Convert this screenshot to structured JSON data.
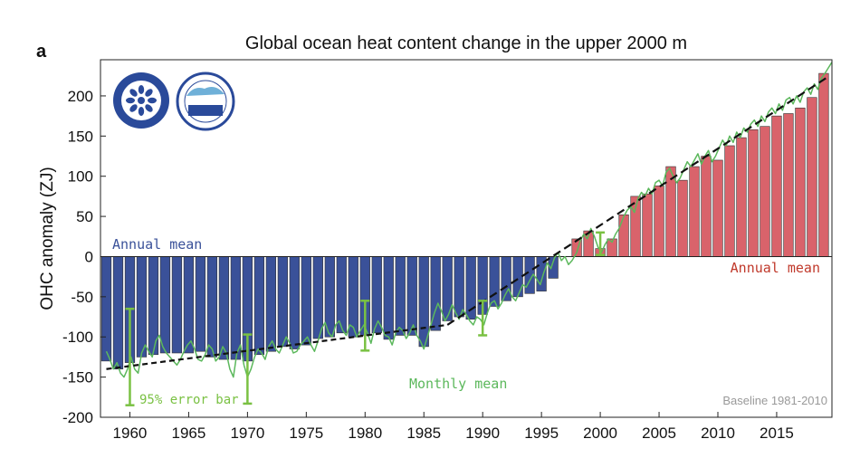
{
  "panel_label": "a",
  "chart_data": {
    "type": "bar",
    "title": "Global ocean heat content change in the upper 2000 m",
    "xlabel": "",
    "ylabel": "OHC anomaly (ZJ)",
    "xlim": [
      1957.5,
      2019.7
    ],
    "ylim": [
      -200,
      245
    ],
    "x_ticks": [
      1960,
      1965,
      1970,
      1975,
      1980,
      1985,
      1990,
      1995,
      2000,
      2005,
      2010,
      2015
    ],
    "y_ticks": [
      -200,
      -150,
      -100,
      -50,
      0,
      50,
      100,
      150,
      200
    ],
    "grid": false,
    "negative_color": "#3a5199",
    "positive_color": "#d9636b",
    "monthly_color": "#5cb85c",
    "errorbar_color": "#7ac143",
    "trend_color": "#111111",
    "annual_years": [
      1958,
      1959,
      1960,
      1961,
      1962,
      1963,
      1964,
      1965,
      1966,
      1967,
      1968,
      1969,
      1970,
      1971,
      1972,
      1973,
      1974,
      1975,
      1976,
      1977,
      1978,
      1979,
      1980,
      1981,
      1982,
      1983,
      1984,
      1985,
      1986,
      1987,
      1988,
      1989,
      1990,
      1991,
      1992,
      1993,
      1994,
      1995,
      1996,
      1997,
      1998,
      1999,
      2000,
      2001,
      2002,
      2003,
      2004,
      2005,
      2006,
      2007,
      2008,
      2009,
      2010,
      2011,
      2012,
      2013,
      2014,
      2015,
      2016,
      2017,
      2018,
      2019
    ],
    "annual_values": [
      -130,
      -140,
      -132,
      -125,
      -122,
      -120,
      -120,
      -120,
      -118,
      -125,
      -128,
      -128,
      -130,
      -122,
      -118,
      -112,
      -115,
      -110,
      -102,
      -100,
      -95,
      -100,
      -98,
      -95,
      -103,
      -98,
      -98,
      -112,
      -92,
      -80,
      -75,
      -78,
      -72,
      -62,
      -55,
      -50,
      -46,
      -43,
      -27,
      0,
      22,
      32,
      10,
      22,
      52,
      75,
      78,
      88,
      112,
      95,
      112,
      125,
      120,
      138,
      148,
      158,
      162,
      175,
      178,
      185,
      198,
      228
    ],
    "monthly_points": [
      [
        1958.0,
        -118
      ],
      [
        1958.3,
        -128
      ],
      [
        1958.6,
        -140
      ],
      [
        1958.9,
        -132
      ],
      [
        1959.2,
        -145
      ],
      [
        1959.5,
        -150
      ],
      [
        1959.8,
        -140
      ],
      [
        1960.1,
        -125
      ],
      [
        1960.4,
        -140
      ],
      [
        1960.7,
        -145
      ],
      [
        1961.0,
        -120
      ],
      [
        1961.3,
        -110
      ],
      [
        1961.6,
        -118
      ],
      [
        1961.9,
        -125
      ],
      [
        1962.2,
        -105
      ],
      [
        1962.5,
        -98
      ],
      [
        1962.8,
        -112
      ],
      [
        1963.1,
        -120
      ],
      [
        1963.4,
        -125
      ],
      [
        1963.7,
        -130
      ],
      [
        1964.0,
        -135
      ],
      [
        1964.3,
        -128
      ],
      [
        1964.6,
        -118
      ],
      [
        1964.9,
        -110
      ],
      [
        1965.2,
        -105
      ],
      [
        1965.5,
        -115
      ],
      [
        1965.8,
        -128
      ],
      [
        1966.1,
        -130
      ],
      [
        1966.4,
        -122
      ],
      [
        1966.7,
        -110
      ],
      [
        1967.0,
        -115
      ],
      [
        1967.3,
        -130
      ],
      [
        1967.6,
        -125
      ],
      [
        1967.9,
        -112
      ],
      [
        1968.2,
        -120
      ],
      [
        1968.5,
        -140
      ],
      [
        1968.8,
        -150
      ],
      [
        1969.1,
        -120
      ],
      [
        1969.4,
        -110
      ],
      [
        1969.7,
        -135
      ],
      [
        1970.0,
        -150
      ],
      [
        1970.3,
        -140
      ],
      [
        1970.6,
        -125
      ],
      [
        1970.9,
        -115
      ],
      [
        1971.2,
        -120
      ],
      [
        1971.5,
        -128
      ],
      [
        1971.8,
        -112
      ],
      [
        1972.1,
        -105
      ],
      [
        1972.4,
        -115
      ],
      [
        1972.7,
        -120
      ],
      [
        1973.0,
        -110
      ],
      [
        1973.3,
        -100
      ],
      [
        1973.6,
        -108
      ],
      [
        1973.9,
        -120
      ],
      [
        1974.2,
        -118
      ],
      [
        1974.5,
        -110
      ],
      [
        1974.8,
        -105
      ],
      [
        1975.1,
        -100
      ],
      [
        1975.4,
        -110
      ],
      [
        1975.7,
        -118
      ],
      [
        1976.0,
        -105
      ],
      [
        1976.3,
        -90
      ],
      [
        1976.6,
        -82
      ],
      [
        1976.9,
        -95
      ],
      [
        1977.2,
        -100
      ],
      [
        1977.5,
        -85
      ],
      [
        1977.8,
        -80
      ],
      [
        1978.1,
        -92
      ],
      [
        1978.4,
        -98
      ],
      [
        1978.7,
        -85
      ],
      [
        1979.0,
        -88
      ],
      [
        1979.3,
        -100
      ],
      [
        1979.6,
        -92
      ],
      [
        1979.9,
        -85
      ],
      [
        1980.2,
        -95
      ],
      [
        1980.5,
        -108
      ],
      [
        1980.8,
        -90
      ],
      [
        1981.1,
        -80
      ],
      [
        1981.4,
        -88
      ],
      [
        1981.7,
        -98
      ],
      [
        1982.0,
        -100
      ],
      [
        1982.3,
        -110
      ],
      [
        1982.6,
        -95
      ],
      [
        1982.9,
        -88
      ],
      [
        1983.2,
        -92
      ],
      [
        1983.5,
        -102
      ],
      [
        1983.8,
        -95
      ],
      [
        1984.1,
        -85
      ],
      [
        1984.4,
        -98
      ],
      [
        1984.7,
        -105
      ],
      [
        1985.0,
        -115
      ],
      [
        1985.3,
        -100
      ],
      [
        1985.6,
        -85
      ],
      [
        1985.9,
        -70
      ],
      [
        1986.2,
        -58
      ],
      [
        1986.5,
        -68
      ],
      [
        1986.8,
        -80
      ],
      [
        1987.1,
        -72
      ],
      [
        1987.4,
        -60
      ],
      [
        1987.7,
        -70
      ],
      [
        1988.0,
        -78
      ],
      [
        1988.3,
        -66
      ],
      [
        1988.6,
        -72
      ],
      [
        1988.9,
        -80
      ],
      [
        1989.2,
        -85
      ],
      [
        1989.5,
        -75
      ],
      [
        1989.8,
        -78
      ],
      [
        1990.1,
        -85
      ],
      [
        1990.4,
        -70
      ],
      [
        1990.7,
        -58
      ],
      [
        1991.0,
        -55
      ],
      [
        1991.3,
        -65
      ],
      [
        1991.6,
        -58
      ],
      [
        1991.9,
        -48
      ],
      [
        1992.2,
        -40
      ],
      [
        1992.5,
        -50
      ],
      [
        1992.8,
        -55
      ],
      [
        1993.1,
        -45
      ],
      [
        1993.4,
        -35
      ],
      [
        1993.7,
        -38
      ],
      [
        1994.0,
        -30
      ],
      [
        1994.3,
        -22
      ],
      [
        1994.6,
        -28
      ],
      [
        1994.9,
        -35
      ],
      [
        1995.2,
        -20
      ],
      [
        1995.5,
        -8
      ],
      [
        1995.8,
        -15
      ],
      [
        1996.1,
        -2
      ],
      [
        1996.4,
        5
      ],
      [
        1996.7,
        -5
      ],
      [
        1997.0,
        0
      ],
      [
        1997.3,
        -10
      ],
      [
        1997.6,
        -5
      ],
      [
        1998.0,
        5
      ],
      [
        1998.3,
        20
      ],
      [
        1998.6,
        28
      ],
      [
        1998.9,
        22
      ],
      [
        1999.2,
        35
      ],
      [
        1999.5,
        25
      ],
      [
        1999.8,
        12
      ],
      [
        2000.1,
        5
      ],
      [
        2000.4,
        15
      ],
      [
        2000.7,
        22
      ],
      [
        2001.0,
        18
      ],
      [
        2001.3,
        28
      ],
      [
        2001.6,
        35
      ],
      [
        2002.0,
        50
      ],
      [
        2002.3,
        58
      ],
      [
        2002.6,
        62
      ],
      [
        2002.9,
        55
      ],
      [
        2003.2,
        72
      ],
      [
        2003.5,
        80
      ],
      [
        2003.8,
        75
      ],
      [
        2004.1,
        85
      ],
      [
        2004.4,
        78
      ],
      [
        2004.7,
        92
      ],
      [
        2005.0,
        95
      ],
      [
        2005.3,
        88
      ],
      [
        2005.6,
        105
      ],
      [
        2005.9,
        110
      ],
      [
        2006.2,
        100
      ],
      [
        2006.5,
        92
      ],
      [
        2006.8,
        98
      ],
      [
        2007.1,
        108
      ],
      [
        2007.4,
        118
      ],
      [
        2007.7,
        112
      ],
      [
        2008.0,
        120
      ],
      [
        2008.3,
        128
      ],
      [
        2008.6,
        115
      ],
      [
        2008.9,
        125
      ],
      [
        2009.2,
        132
      ],
      [
        2009.5,
        118
      ],
      [
        2009.8,
        125
      ],
      [
        2010.1,
        135
      ],
      [
        2010.4,
        145
      ],
      [
        2010.7,
        138
      ],
      [
        2011.0,
        150
      ],
      [
        2011.3,
        142
      ],
      [
        2011.6,
        155
      ],
      [
        2011.9,
        148
      ],
      [
        2012.2,
        160
      ],
      [
        2012.5,
        155
      ],
      [
        2012.8,
        165
      ],
      [
        2013.1,
        170
      ],
      [
        2013.4,
        162
      ],
      [
        2013.7,
        175
      ],
      [
        2014.0,
        168
      ],
      [
        2014.3,
        180
      ],
      [
        2014.6,
        185
      ],
      [
        2014.9,
        178
      ],
      [
        2015.2,
        190
      ],
      [
        2015.5,
        182
      ],
      [
        2015.8,
        195
      ],
      [
        2016.1,
        198
      ],
      [
        2016.4,
        190
      ],
      [
        2016.7,
        200
      ],
      [
        2017.0,
        192
      ],
      [
        2017.3,
        205
      ],
      [
        2017.6,
        210
      ],
      [
        2017.9,
        202
      ],
      [
        2018.2,
        215
      ],
      [
        2018.5,
        208
      ],
      [
        2018.8,
        222
      ],
      [
        2019.1,
        228
      ],
      [
        2019.4,
        235
      ],
      [
        2019.7,
        242
      ]
    ],
    "error_bars": [
      {
        "x": 1960,
        "low": -185,
        "high": -65
      },
      {
        "x": 1970,
        "low": -183,
        "high": -97
      },
      {
        "x": 1980,
        "low": -117,
        "high": -55
      },
      {
        "x": 1990,
        "low": -98,
        "high": -55
      },
      {
        "x": 2000,
        "low": 2,
        "high": 30
      }
    ],
    "trend_segments": [
      {
        "x": [
          1958,
          1987
        ],
        "y": [
          -140,
          -85
        ],
        "dash": "dense"
      },
      {
        "x": [
          1987,
          2019.5
        ],
        "y": [
          -85,
          225
        ],
        "dash": "long"
      }
    ],
    "annotations": {
      "annual_mean_left": "Annual mean",
      "annual_mean_right": "Annual mean",
      "monthly_mean": "Monthly mean",
      "error_bar": "95% error bar",
      "baseline": "Baseline 1981-2010"
    }
  }
}
